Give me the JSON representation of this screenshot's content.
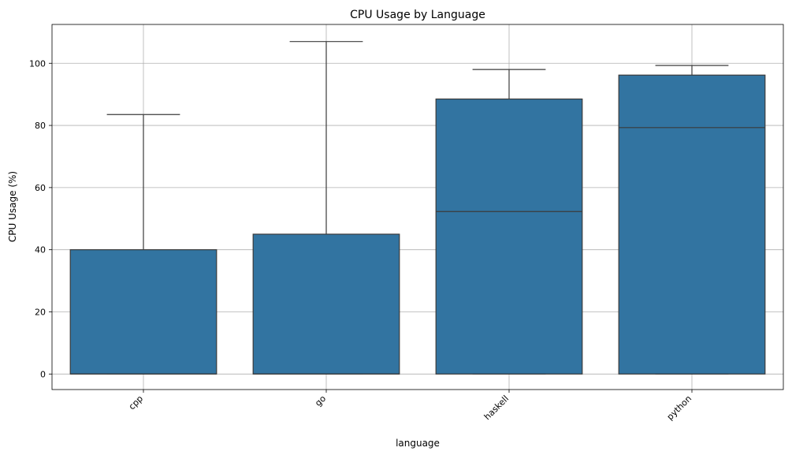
{
  "chart_data": {
    "type": "box",
    "title": "CPU Usage by Language",
    "xlabel": "language",
    "ylabel": "CPU Usage (%)",
    "categories": [
      "cpp",
      "go",
      "haskell",
      "python"
    ],
    "boxes": [
      {
        "category": "cpp",
        "whisker_low": 0,
        "q1": 0,
        "median": 0,
        "q3": 40,
        "whisker_high": 83.5
      },
      {
        "category": "go",
        "whisker_low": 0,
        "q1": 0,
        "median": 0,
        "q3": 45,
        "whisker_high": 107
      },
      {
        "category": "haskell",
        "whisker_low": 0,
        "q1": 0,
        "median": 52.3,
        "q3": 88.5,
        "whisker_high": 98
      },
      {
        "category": "python",
        "whisker_low": 0,
        "q1": 0,
        "median": 79.3,
        "q3": 96.2,
        "whisker_high": 99.3
      }
    ],
    "yticks": [
      0,
      20,
      40,
      60,
      80,
      100
    ],
    "ylim": [
      -5,
      112.5
    ],
    "grid": true,
    "box_color": "#3274a1",
    "line_color": "#3b3b3b"
  }
}
